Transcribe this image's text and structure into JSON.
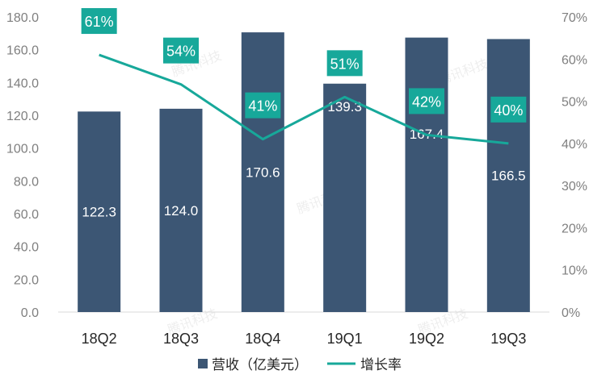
{
  "chart_data": {
    "type": "bar",
    "categories": [
      "18Q2",
      "18Q3",
      "18Q4",
      "19Q1",
      "19Q2",
      "19Q3"
    ],
    "series": [
      {
        "name": "营收（亿美元）",
        "type": "bar",
        "axis": "left",
        "values": [
          122.3,
          124.0,
          170.6,
          139.3,
          167.4,
          166.5
        ],
        "labels": [
          "122.3",
          "124.0",
          "170.6",
          "139.3",
          "167.4",
          "166.5"
        ],
        "color": "#3c5674"
      },
      {
        "name": "增长率",
        "type": "line",
        "axis": "right",
        "values": [
          61,
          54,
          41,
          51,
          42,
          40
        ],
        "labels": [
          "61%",
          "54%",
          "41%",
          "51%",
          "42%",
          "40%"
        ],
        "color": "#17a89a"
      }
    ],
    "y_left": {
      "ylim": [
        0,
        180
      ],
      "ticks": [
        "0.0",
        "20.0",
        "40.0",
        "60.0",
        "80.0",
        "100.0",
        "120.0",
        "140.0",
        "160.0",
        "180.0"
      ]
    },
    "y_right": {
      "ylim": [
        0,
        70
      ],
      "ticks": [
        "0%",
        "10%",
        "20%",
        "30%",
        "40%",
        "50%",
        "60%",
        "70%"
      ]
    },
    "grid": false,
    "legend": "bottom-center",
    "watermark": "腾讯科技"
  }
}
